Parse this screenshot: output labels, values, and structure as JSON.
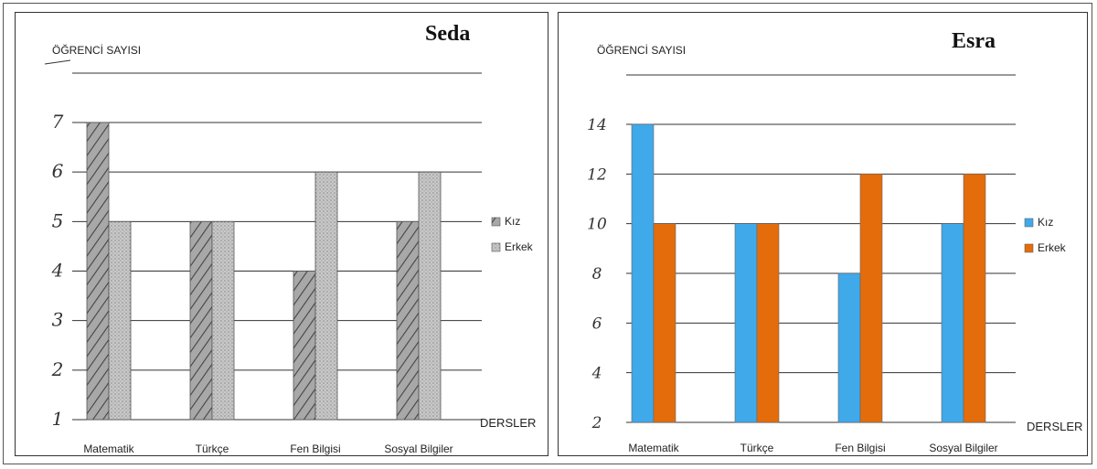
{
  "chart_data": [
    {
      "type": "bar",
      "name_label": "Seda",
      "ylabel": "ÖĞRENCİ SAYISI",
      "xlabel": "DERSLER",
      "categories": [
        "Matematik",
        "Türkçe",
        "Fen Bilgisi",
        "Sosyal Bilgiler"
      ],
      "series": [
        {
          "name": "Kız",
          "values": [
            7,
            5,
            4,
            5
          ]
        },
        {
          "name": "Erkek",
          "values": [
            5,
            5,
            6,
            6
          ]
        }
      ],
      "ylim": [
        1,
        7
      ],
      "yticks": [
        "1",
        "2",
        "3",
        "4",
        "5",
        "6",
        "7"
      ],
      "grid": true,
      "legend": "right",
      "style": "hand-drawn hatched and stippled bars",
      "colors": {
        "Kız": "#9a9a9a",
        "Erkek": "#c4c4c4"
      }
    },
    {
      "type": "bar",
      "name_label": "Esra",
      "ylabel": "ÖĞRENCİ SAYISI",
      "xlabel": "DERSLER",
      "categories": [
        "Matematik",
        "Türkçe",
        "Fen Bilgisi",
        "Sosyal Bilgiler"
      ],
      "series": [
        {
          "name": "Kız",
          "values": [
            14,
            10,
            8,
            10
          ]
        },
        {
          "name": "Erkek",
          "values": [
            10,
            10,
            12,
            12
          ]
        }
      ],
      "ylim": [
        2,
        14
      ],
      "yticks": [
        "2",
        "4",
        "6",
        "8",
        "10",
        "12",
        "14"
      ],
      "grid": true,
      "legend": "right",
      "colors": {
        "Kız": "#3fa9ea",
        "Erkek": "#e46c0a"
      }
    }
  ]
}
